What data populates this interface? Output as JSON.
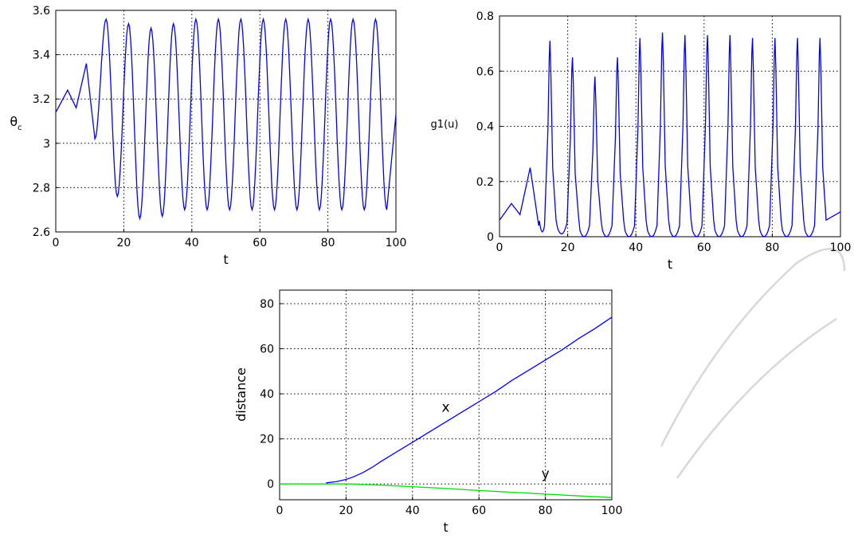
{
  "chart_data": [
    {
      "type": "line",
      "title": "",
      "xlabel": "t",
      "ylabel": "θc",
      "ylabel_main": "θ",
      "ylabel_sub": "c",
      "xlim": [
        0,
        100
      ],
      "ylim": [
        2.6,
        3.6
      ],
      "xticks": [
        "0",
        "20",
        "40",
        "60",
        "80",
        "100"
      ],
      "yticks": [
        "2.6",
        "2.8",
        "3",
        "3.2",
        "3.4",
        "3.6"
      ],
      "grid": true,
      "series": [
        {
          "color": "#0000ff",
          "signal": {
            "period": 6.6,
            "start": [
              [
                0,
                3.14
              ],
              [
                3.5,
                3.24
              ],
              [
                6,
                3.16
              ],
              [
                9,
                3.36
              ],
              [
                11.5,
                3.02
              ]
            ],
            "start_end": 11.5,
            "peaks": [
              3.56,
              3.54,
              3.52,
              3.54,
              3.56,
              3.56,
              3.56,
              3.56,
              3.56,
              3.56,
              3.56,
              3.56,
              3.56
            ],
            "troughs": [
              2.76,
              2.66,
              2.67,
              2.7,
              2.7,
              2.7,
              2.7,
              2.7,
              2.7,
              2.7,
              2.7,
              2.7,
              2.7
            ],
            "end_value": 3.13
          }
        }
      ]
    },
    {
      "type": "line",
      "title": "",
      "xlabel": "t",
      "ylabel": "g1(u)",
      "xlim": [
        0,
        100
      ],
      "ylim": [
        0,
        0.8
      ],
      "xticks": [
        "0",
        "20",
        "40",
        "60",
        "80",
        "100"
      ],
      "yticks": [
        "0",
        "0.2",
        "0.4",
        "0.6",
        "0.8"
      ],
      "grid": true,
      "series": [
        {
          "color": "#0000ff",
          "pulses": {
            "start": [
              [
                0,
                0.06
              ],
              [
                3.5,
                0.12
              ],
              [
                6,
                0.08
              ],
              [
                9,
                0.25
              ],
              [
                11.5,
                0.04
              ]
            ],
            "start_end": 11.5,
            "period": 6.6,
            "first_peak": 14.8,
            "peaks": [
              0.71,
              0.65,
              0.58,
              0.65,
              0.72,
              0.74,
              0.73,
              0.73,
              0.73,
              0.72,
              0.72,
              0.72,
              0.72
            ],
            "troughs": [
              0.0,
              0.01,
              0.0,
              0.0,
              0.0,
              0.0,
              0.0,
              0.0,
              0.0,
              0.0,
              0.0,
              0.0,
              0.0
            ],
            "end_value": 0.09
          }
        }
      ]
    },
    {
      "type": "line",
      "title": "",
      "xlabel": "t",
      "ylabel": "distance",
      "xlim": [
        0,
        100
      ],
      "ylim": [
        -7,
        86
      ],
      "xticks": [
        "0",
        "20",
        "40",
        "60",
        "80",
        "100"
      ],
      "yticks": [
        "0",
        "20",
        "40",
        "60",
        "80"
      ],
      "grid": true,
      "series": [
        {
          "name": "x",
          "color": "#0000ff",
          "x": [
            14,
            17,
            20,
            22,
            25,
            28,
            30,
            35,
            40,
            45,
            50,
            55,
            60,
            65,
            70,
            75,
            80,
            85,
            90,
            95,
            100
          ],
          "y": [
            0.5,
            1,
            2,
            3,
            5,
            7.5,
            9.5,
            14,
            18.5,
            23,
            27.5,
            32,
            36.5,
            41,
            46,
            50.5,
            55,
            59.5,
            64.5,
            69,
            74
          ]
        },
        {
          "name": "y",
          "color": "#00dd00",
          "x": [
            0,
            10,
            20,
            25,
            30,
            40,
            50,
            60,
            70,
            80,
            90,
            100
          ],
          "y": [
            0,
            0,
            0,
            -0.2,
            -0.5,
            -1.2,
            -2,
            -2.9,
            -3.7,
            -4.5,
            -5.3,
            -6
          ]
        }
      ],
      "annotations": [
        {
          "text": "x",
          "x": 50,
          "y": 32
        },
        {
          "text": "y",
          "x": 80,
          "y": 2.5
        }
      ]
    }
  ]
}
